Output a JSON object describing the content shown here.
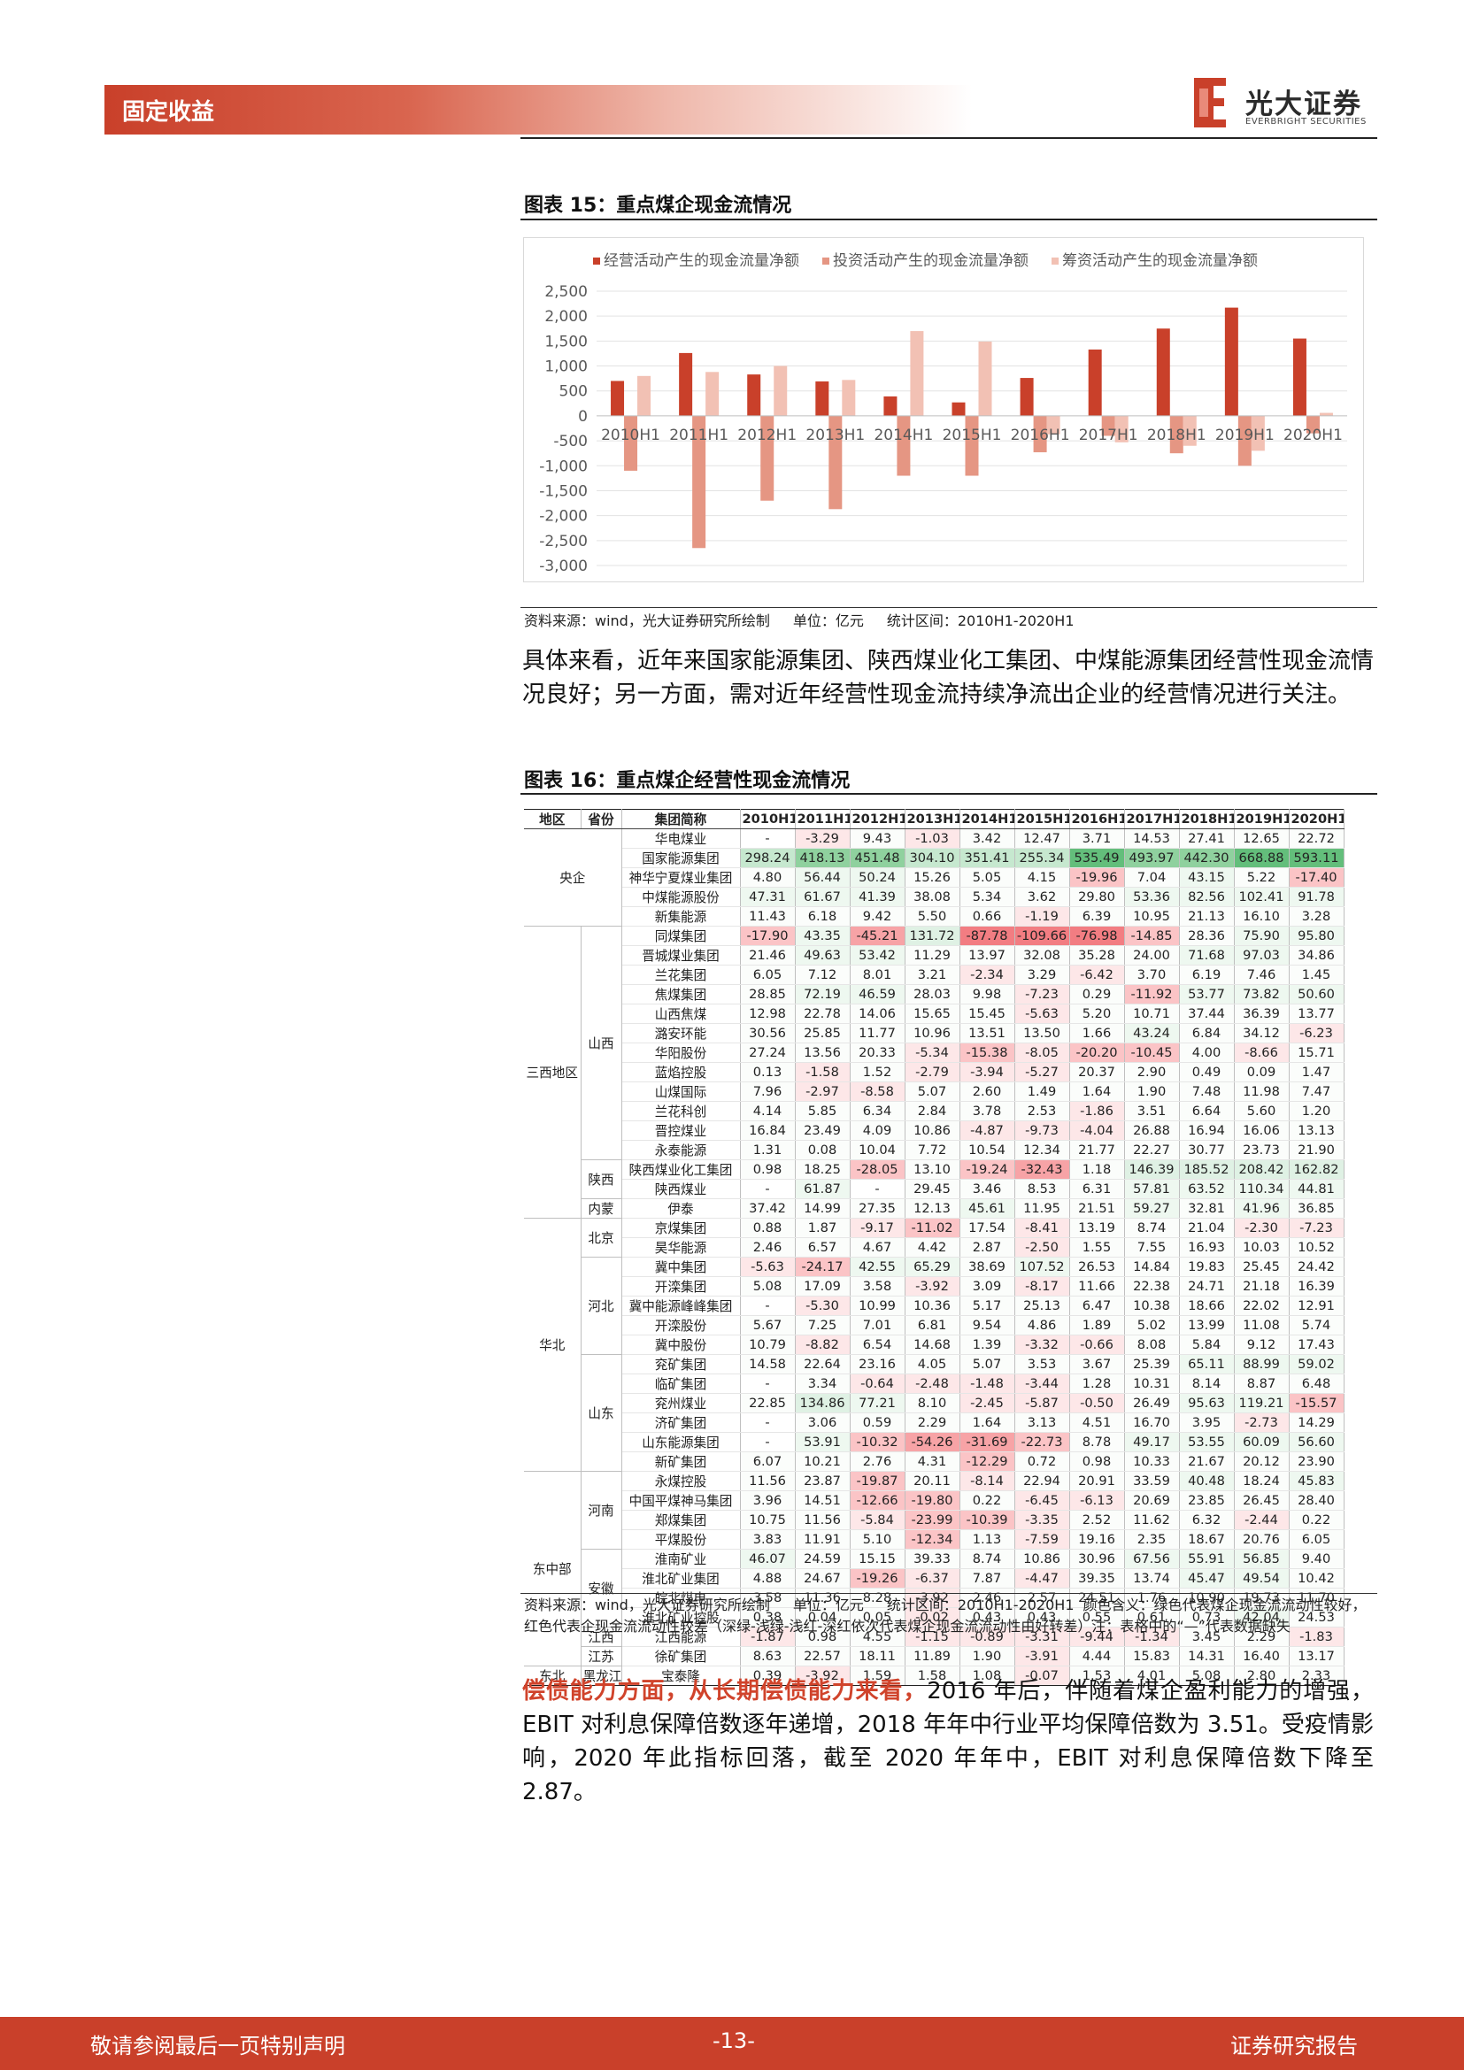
{
  "header": {
    "section": "固定收益",
    "logo_cn": "光大证券",
    "logo_en": "EVERBRIGHT SECURITIES"
  },
  "colors": {
    "accent": "#c9402a",
    "operating": "#c9402a",
    "investing": "#e59683",
    "financing": "#f2c1b4"
  },
  "figure15": {
    "title": "图表 15：重点煤企现金流情况",
    "source": "资料来源：wind，光大证券研究所绘制",
    "unit": "单位：亿元",
    "period": "统计区间：2010H1-2020H1"
  },
  "chart_data": {
    "type": "bar",
    "categories": [
      "2010H1",
      "2011H1",
      "2012H1",
      "2013H1",
      "2014H1",
      "2015H1",
      "2016H1",
      "2017H1",
      "2018H1",
      "2019H1",
      "2020H1"
    ],
    "series": [
      {
        "name": "经营活动产生的现金流量净额",
        "values": [
          700,
          1260,
          830,
          690,
          390,
          270,
          760,
          1330,
          1750,
          2170,
          1550
        ]
      },
      {
        "name": "投资活动产生的现金流量净额",
        "values": [
          -1100,
          -2650,
          -1700,
          -1870,
          -1200,
          -1200,
          -730,
          -400,
          -750,
          -1000,
          -350
        ]
      },
      {
        "name": "筹资活动产生的现金流量净额",
        "values": [
          800,
          880,
          1000,
          720,
          1700,
          1490,
          -370,
          -530,
          -600,
          -700,
          60
        ]
      }
    ],
    "yticks": [
      "2,500",
      "2,000",
      "1,500",
      "1,000",
      "500",
      "0",
      "-500",
      "-1,000",
      "-1,500",
      "-2,000",
      "-2,500",
      "-3,000"
    ],
    "ylim": [
      -3000,
      2500
    ],
    "legend": "top",
    "grid": true
  },
  "text1": "具体来看，近年来国家能源集团、陕西煤业化工集团、中煤能源集团经营性现金流情况良好；另一方面，需对近年经营性现金流持续净流出企业的经营情况进行关注。",
  "figure16": {
    "title": "图表 16：重点煤企经营性现金流情况",
    "headers": [
      "地区",
      "省份",
      "集团简称",
      "2010H1",
      "2011H1",
      "2012H1",
      "2013H1",
      "2014H1",
      "2015H1",
      "2016H1",
      "2017H1",
      "2018H1",
      "2019H1",
      "2020H1"
    ],
    "groups": [
      {
        "region": "央企",
        "provs": [
          {
            "prov": "",
            "rows": [
              [
                "华电煤业",
                "-",
                "-3.29",
                "9.43",
                "-1.03",
                "3.42",
                "12.47",
                "3.71",
                "14.53",
                "27.41",
                "12.65",
                "22.72"
              ],
              [
                "国家能源集团",
                "298.24",
                "418.13",
                "451.48",
                "304.10",
                "351.41",
                "255.34",
                "535.49",
                "493.97",
                "442.30",
                "668.88",
                "593.11"
              ],
              [
                "神华宁夏煤业集团",
                "4.80",
                "56.44",
                "50.24",
                "15.26",
                "5.05",
                "4.15",
                "-19.96",
                "7.04",
                "43.15",
                "5.22",
                "-17.40"
              ],
              [
                "中煤能源股份",
                "47.31",
                "61.67",
                "41.39",
                "38.08",
                "5.34",
                "3.62",
                "29.80",
                "53.36",
                "82.56",
                "102.41",
                "91.78"
              ],
              [
                "新集能源",
                "11.43",
                "6.18",
                "9.42",
                "5.50",
                "0.66",
                "-1.19",
                "6.39",
                "10.95",
                "21.13",
                "16.10",
                "3.28"
              ]
            ]
          }
        ]
      },
      {
        "region": "三西地区",
        "provs": [
          {
            "prov": "山西",
            "rows": [
              [
                "同煤集团",
                "-17.90",
                "43.35",
                "-45.21",
                "131.72",
                "-87.78",
                "-109.66",
                "-76.98",
                "-14.85",
                "28.36",
                "75.90",
                "95.80"
              ],
              [
                "晋城煤业集团",
                "21.46",
                "49.63",
                "53.42",
                "11.29",
                "13.97",
                "32.08",
                "35.28",
                "24.00",
                "71.68",
                "97.03",
                "34.86"
              ],
              [
                "兰花集团",
                "6.05",
                "7.12",
                "8.01",
                "3.21",
                "-2.34",
                "3.29",
                "-6.42",
                "3.70",
                "6.19",
                "7.46",
                "1.45"
              ],
              [
                "焦煤集团",
                "28.85",
                "72.19",
                "46.59",
                "28.03",
                "9.98",
                "-7.23",
                "0.29",
                "-11.92",
                "53.77",
                "73.82",
                "50.60"
              ],
              [
                "山西焦煤",
                "12.98",
                "22.78",
                "14.06",
                "15.65",
                "15.45",
                "-5.63",
                "5.20",
                "10.71",
                "37.44",
                "36.39",
                "13.77"
              ],
              [
                "潞安环能",
                "30.56",
                "25.85",
                "11.77",
                "10.96",
                "13.51",
                "13.50",
                "1.66",
                "43.24",
                "6.84",
                "34.12",
                "-6.23"
              ],
              [
                "华阳股份",
                "27.24",
                "13.56",
                "20.33",
                "-5.34",
                "-15.38",
                "-8.05",
                "-20.20",
                "-10.45",
                "4.00",
                "-8.66",
                "15.71"
              ],
              [
                "蓝焰控股",
                "0.13",
                "-1.58",
                "1.52",
                "-2.79",
                "-3.94",
                "-5.27",
                "20.37",
                "2.90",
                "0.49",
                "0.09",
                "1.47"
              ],
              [
                "山煤国际",
                "7.96",
                "-2.97",
                "-8.58",
                "5.07",
                "2.60",
                "1.49",
                "1.64",
                "1.90",
                "7.48",
                "11.98",
                "7.47"
              ],
              [
                "兰花科创",
                "4.14",
                "5.85",
                "6.34",
                "2.84",
                "3.78",
                "2.53",
                "-1.86",
                "3.51",
                "6.64",
                "5.60",
                "1.20"
              ],
              [
                "晋控煤业",
                "16.84",
                "23.49",
                "4.09",
                "10.86",
                "-4.87",
                "-9.73",
                "-4.04",
                "26.88",
                "16.94",
                "16.06",
                "13.13"
              ],
              [
                "永泰能源",
                "1.31",
                "0.08",
                "10.04",
                "7.72",
                "10.54",
                "12.34",
                "21.77",
                "22.27",
                "30.77",
                "23.73",
                "21.90"
              ]
            ]
          },
          {
            "prov": "陕西",
            "rows": [
              [
                "陕西煤业化工集团",
                "0.98",
                "18.25",
                "-28.05",
                "13.10",
                "-19.24",
                "-32.43",
                "1.18",
                "146.39",
                "185.52",
                "208.42",
                "162.82"
              ],
              [
                "陕西煤业",
                "-",
                "61.87",
                "-",
                "29.45",
                "3.46",
                "8.53",
                "6.31",
                "57.81",
                "63.52",
                "110.34",
                "44.81"
              ]
            ]
          },
          {
            "prov": "内蒙",
            "rows": [
              [
                "伊泰",
                "37.42",
                "14.99",
                "27.35",
                "12.13",
                "45.61",
                "11.95",
                "21.51",
                "59.27",
                "32.81",
                "41.96",
                "36.85"
              ]
            ]
          }
        ]
      },
      {
        "region": "华北",
        "provs": [
          {
            "prov": "北京",
            "rows": [
              [
                "京煤集团",
                "0.88",
                "1.87",
                "-9.17",
                "-11.02",
                "17.54",
                "-8.41",
                "13.19",
                "8.74",
                "21.04",
                "-2.30",
                "-7.23"
              ],
              [
                "昊华能源",
                "2.46",
                "6.57",
                "4.67",
                "4.42",
                "2.87",
                "-2.50",
                "1.55",
                "7.55",
                "16.93",
                "10.03",
                "10.52"
              ]
            ]
          },
          {
            "prov": "河北",
            "rows": [
              [
                "冀中集团",
                "-5.63",
                "-24.17",
                "42.55",
                "65.29",
                "38.69",
                "107.52",
                "26.53",
                "14.84",
                "19.83",
                "25.45",
                "24.42"
              ],
              [
                "开滦集团",
                "5.08",
                "17.09",
                "3.58",
                "-3.92",
                "3.09",
                "-8.17",
                "11.66",
                "22.38",
                "24.71",
                "21.18",
                "16.39"
              ],
              [
                "冀中能源峰峰集团",
                "-",
                "-5.30",
                "10.99",
                "10.36",
                "5.17",
                "25.13",
                "6.47",
                "10.38",
                "18.66",
                "22.02",
                "12.91"
              ],
              [
                "开滦股份",
                "5.67",
                "7.25",
                "7.01",
                "6.81",
                "9.54",
                "4.86",
                "1.89",
                "5.02",
                "13.99",
                "11.08",
                "5.74"
              ],
              [
                "冀中股份",
                "10.79",
                "-8.82",
                "6.54",
                "14.68",
                "1.39",
                "-3.32",
                "-0.66",
                "8.08",
                "5.84",
                "9.12",
                "17.43"
              ]
            ]
          },
          {
            "prov": "山东",
            "rows": [
              [
                "兖矿集团",
                "14.58",
                "22.64",
                "23.16",
                "4.05",
                "5.07",
                "3.53",
                "3.67",
                "25.39",
                "65.11",
                "88.99",
                "59.02"
              ],
              [
                "临矿集团",
                "-",
                "3.34",
                "-0.64",
                "-2.48",
                "-1.48",
                "-3.44",
                "1.28",
                "10.31",
                "8.14",
                "8.87",
                "6.48"
              ],
              [
                "兖州煤业",
                "22.85",
                "134.86",
                "77.21",
                "8.10",
                "-2.45",
                "-5.87",
                "-0.50",
                "26.49",
                "95.63",
                "119.21",
                "-15.57"
              ],
              [
                "济矿集团",
                "-",
                "3.06",
                "0.59",
                "2.29",
                "1.64",
                "3.13",
                "4.51",
                "16.70",
                "3.95",
                "-2.73",
                "14.29"
              ],
              [
                "山东能源集团",
                "-",
                "53.91",
                "-10.32",
                "-54.26",
                "-31.69",
                "-22.73",
                "8.78",
                "49.17",
                "53.55",
                "60.09",
                "56.60"
              ],
              [
                "新矿集团",
                "6.07",
                "10.21",
                "2.76",
                "4.31",
                "-12.29",
                "0.72",
                "0.98",
                "10.33",
                "21.67",
                "20.12",
                "23.90"
              ]
            ]
          }
        ]
      },
      {
        "region": "东中部",
        "provs": [
          {
            "prov": "河南",
            "rows": [
              [
                "永煤控股",
                "11.56",
                "23.87",
                "-19.87",
                "20.11",
                "-8.14",
                "22.94",
                "20.91",
                "33.59",
                "40.48",
                "18.24",
                "45.83"
              ],
              [
                "中国平煤神马集团",
                "3.96",
                "14.51",
                "-12.66",
                "-19.80",
                "0.22",
                "-6.45",
                "-6.13",
                "20.69",
                "23.85",
                "26.45",
                "28.40"
              ],
              [
                "郑煤集团",
                "10.75",
                "11.56",
                "-5.84",
                "-23.99",
                "-10.39",
                "-3.35",
                "2.52",
                "11.62",
                "6.32",
                "-2.44",
                "0.22"
              ],
              [
                "平煤股份",
                "3.83",
                "11.91",
                "5.10",
                "-12.34",
                "1.13",
                "-7.59",
                "19.16",
                "2.35",
                "18.67",
                "20.76",
                "6.05"
              ]
            ]
          },
          {
            "prov": "安徽",
            "rows": [
              [
                "淮南矿业",
                "46.07",
                "24.59",
                "15.15",
                "39.33",
                "8.74",
                "10.86",
                "30.96",
                "67.56",
                "55.91",
                "56.85",
                "9.40"
              ],
              [
                "淮北矿业集团",
                "4.88",
                "24.67",
                "-19.26",
                "-6.37",
                "7.87",
                "-4.47",
                "39.35",
                "13.74",
                "45.47",
                "49.54",
                "10.42"
              ],
              [
                "皖北煤电",
                "3.58",
                "11.36",
                "8.28",
                "-3.92",
                "2.46",
                "2.57",
                "24.51",
                "1.76",
                "10.90",
                "19.73",
                "11.70"
              ],
              [
                "淮北矿业控股",
                "0.38",
                "0.04",
                "0.05",
                "-0.02",
                "0.43",
                "0.43",
                "0.55",
                "0.61",
                "0.73",
                "42.04",
                "24.53"
              ]
            ]
          },
          {
            "prov": "江西",
            "rows": [
              [
                "江西能源",
                "-1.87",
                "0.98",
                "4.55",
                "-1.15",
                "-0.89",
                "-3.31",
                "-9.44",
                "-1.34",
                "3.45",
                "2.29",
                "-1.83"
              ]
            ]
          },
          {
            "prov": "江苏",
            "rows": [
              [
                "徐矿集团",
                "8.63",
                "22.57",
                "18.11",
                "11.89",
                "1.90",
                "-3.91",
                "4.44",
                "15.83",
                "14.31",
                "16.40",
                "13.17"
              ]
            ]
          }
        ]
      },
      {
        "region": "东北",
        "provs": [
          {
            "prov": "黑龙江",
            "rows": [
              [
                "宝泰隆",
                "0.39",
                "-3.92",
                "1.59",
                "1.58",
                "1.08",
                "-0.07",
                "1.53",
                "4.01",
                "5.08",
                "2.80",
                "2.33"
              ]
            ]
          }
        ]
      }
    ],
    "source": "资料来源：wind，光大证券研究所绘制",
    "unit": "单位：亿元",
    "period": "统计区间：2010H1-2020H1",
    "note": "颜色含义：绿色代表煤企现金流流动性较好，红色代表企现金流流动性较差（深绿-浅绿-浅红-深红依次代表煤企现金流流动性由好转差）注：表格中的“—”代表数据缺失"
  },
  "text2": {
    "highlight": "偿债能力方面，从长期偿债能力来看，",
    "body": "2016 年后，伴随着煤企盈利能力的增强，EBIT 对利息保障倍数逐年递增，2018 年年中行业平均保障倍数为 3.51。受疫情影响，2020 年此指标回落，截至 2020 年年中，EBIT 对利息保障倍数下降至 2.87。"
  },
  "footer": {
    "left": "敬请参阅最后一页特别声明",
    "page": "-13-",
    "right": "证券研究报告"
  }
}
